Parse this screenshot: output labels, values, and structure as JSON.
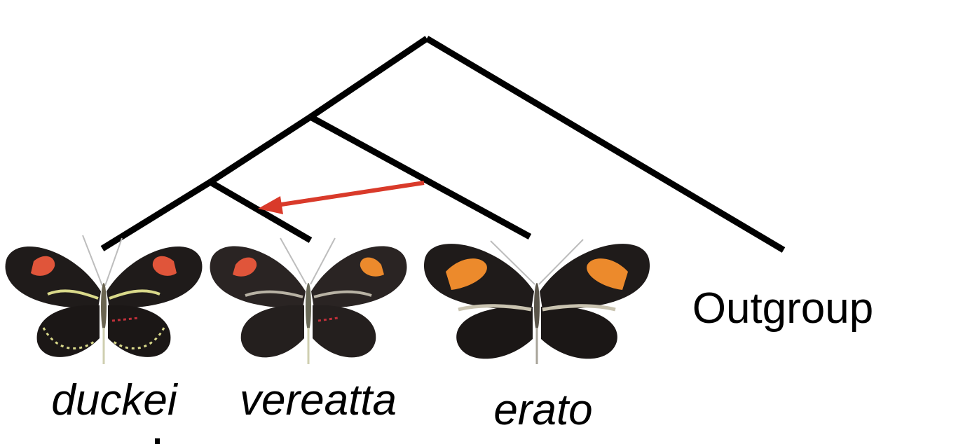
{
  "diagram": {
    "type": "phylogenetic-tree",
    "taxa": [
      {
        "id": "duckei",
        "label": "duckei",
        "italic": true
      },
      {
        "id": "vereatta",
        "label": "vereatta",
        "italic": true
      },
      {
        "id": "erato",
        "label": "erato",
        "italic": true
      },
      {
        "id": "outgroup",
        "label": "Outgroup",
        "italic": false
      }
    ],
    "topology": "(((duckei, vereatta), erato), Outgroup)",
    "introgression": {
      "from": "erato",
      "to": "vereatta",
      "color": "#d93a2a"
    },
    "colors": {
      "branch": "#000000",
      "wing_black": "#1f1b1a",
      "red_band": "#e0553a",
      "orange_band": "#ec8a2c",
      "yellow_lines": "#d9d98a",
      "pale_bar": "#c9c3b0"
    }
  }
}
